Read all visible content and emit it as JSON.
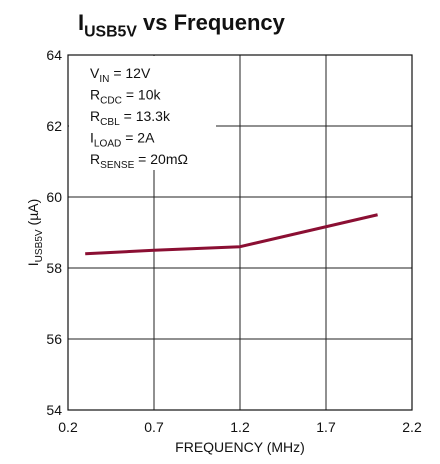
{
  "chart_data": {
    "type": "line",
    "title": [
      {
        "text": "I"
      },
      {
        "text": "USB5V",
        "sub": true
      },
      {
        "text": " vs Frequency"
      }
    ],
    "ylabel": [
      {
        "text": "I"
      },
      {
        "text": "USB5V",
        "sub": true
      },
      {
        "text": " (µA)"
      }
    ],
    "xlabel": "FREQUENCY (MHz)",
    "annotation": [
      [
        {
          "text": "V"
        },
        {
          "text": "IN",
          "sub": true
        },
        {
          "text": " = 12V"
        }
      ],
      [
        {
          "text": "R"
        },
        {
          "text": "CDC",
          "sub": true
        },
        {
          "text": " = 10k"
        }
      ],
      [
        {
          "text": "R"
        },
        {
          "text": "CBL",
          "sub": true
        },
        {
          "text": " = 13.3k"
        }
      ],
      [
        {
          "text": "I"
        },
        {
          "text": "LOAD",
          "sub": true
        },
        {
          "text": " = 2A"
        }
      ],
      [
        {
          "text": "R"
        },
        {
          "text": "SENSE",
          "sub": true
        },
        {
          "text": " = 20mΩ"
        }
      ]
    ],
    "x": [
      0.3,
      0.7,
      1.2,
      2.0
    ],
    "values": [
      58.4,
      58.5,
      58.6,
      59.5
    ],
    "color": "#8b0f33",
    "xlim": [
      0.2,
      2.2
    ],
    "xticks": [
      0.2,
      0.7,
      1.2,
      1.7,
      2.2
    ],
    "ylim": [
      54,
      64
    ],
    "yticks": [
      54,
      56,
      58,
      60,
      62,
      64
    ],
    "grid": true
  }
}
